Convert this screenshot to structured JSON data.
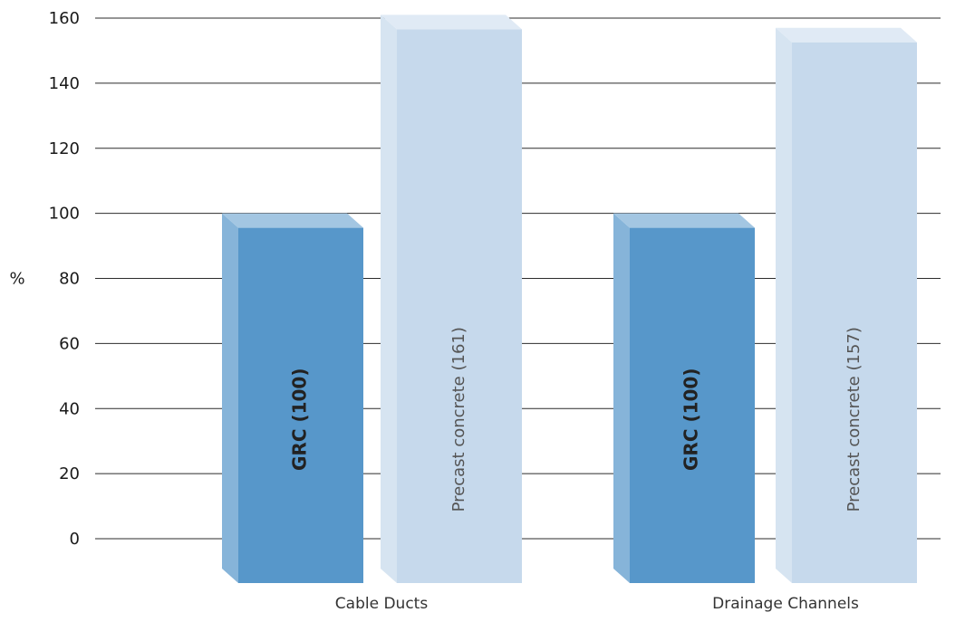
{
  "chart_data": {
    "type": "bar",
    "title": "",
    "xlabel": "",
    "ylabel": "%",
    "ylim": [
      0,
      160
    ],
    "y_ticks": [
      "0",
      "20",
      "40",
      "60",
      "80",
      "100",
      "120",
      "140",
      "160"
    ],
    "categories": [
      "Cable Ducts",
      "Drainage Channels"
    ],
    "series": [
      {
        "values": [
          100,
          100
        ],
        "bar_labels": [
          "GRC (100)",
          "GRC (100)"
        ],
        "color": "#5797ca"
      },
      {
        "values": [
          161,
          157
        ],
        "bar_labels": [
          "Precast concrete (161)",
          "Precast concrete (157)"
        ],
        "color": "#c6d9ec"
      }
    ],
    "grid": true,
    "style": "3d"
  }
}
